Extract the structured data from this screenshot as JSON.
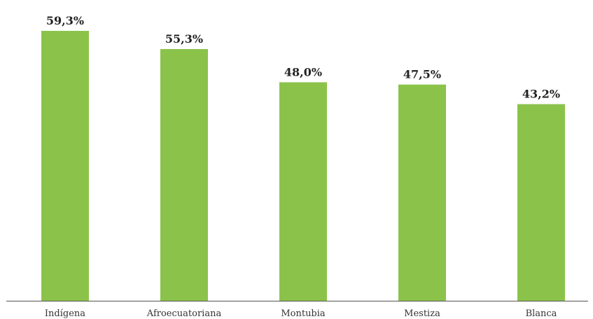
{
  "chart_data": {
    "type": "bar",
    "categories": [
      "Indígena",
      "Afroecuatoriana",
      "Montubia",
      "Mestiza",
      "Blanca"
    ],
    "values": [
      59.3,
      55.3,
      48.0,
      47.5,
      43.2
    ],
    "value_labels": [
      "59,3%",
      "55,3%",
      "48,0%",
      "47,5%",
      "43,2%"
    ],
    "title": "",
    "xlabel": "",
    "ylabel": "",
    "ylim": [
      0,
      59.3
    ],
    "grid": false,
    "legend": "none",
    "colors": {
      "bar": "#8bc34a",
      "axis": "#555555"
    }
  }
}
